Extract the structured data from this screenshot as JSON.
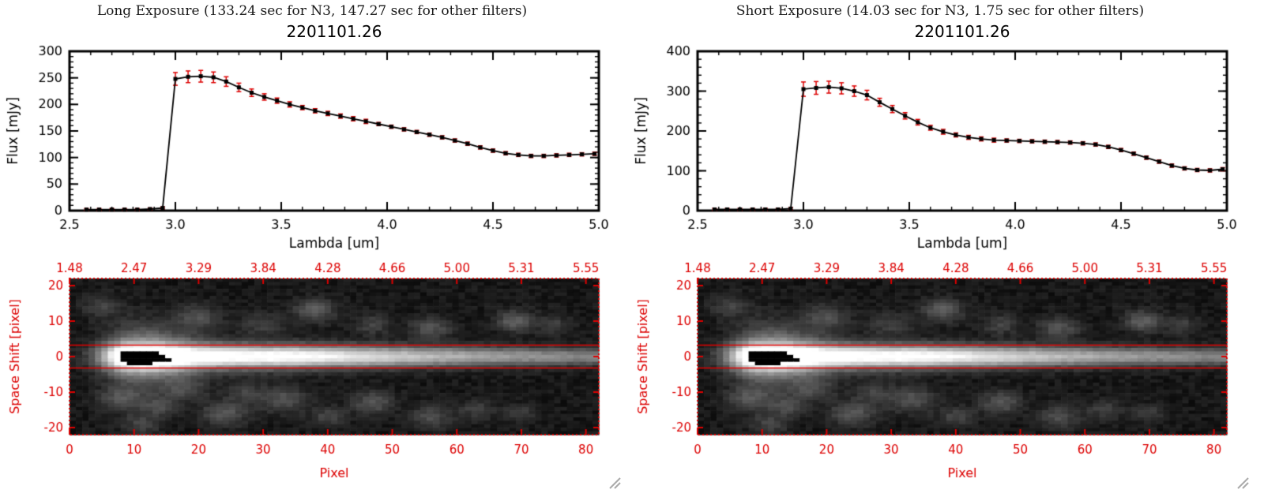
{
  "colors": {
    "accent_red": "#dd0000",
    "frame_black": "#000000",
    "grip_gray": "#aaaaaa"
  },
  "chart_data": {
    "panels": [
      {
        "type": "line",
        "header": "Long Exposure (133.24 sec for N3, 147.27 sec for other filters)",
        "title": "2201101.26",
        "xlabel": "Lambda [um]",
        "ylabel": "Flux [mJy]",
        "xlim": [
          2.5,
          5.0
        ],
        "ylim": [
          0,
          300
        ],
        "xticks": [
          "2.5",
          "3.0",
          "3.5",
          "4.0",
          "4.5",
          "5.0"
        ],
        "yticks": [
          0,
          50,
          100,
          150,
          200,
          250,
          300
        ],
        "x": [
          2.58,
          2.64,
          2.7,
          2.76,
          2.82,
          2.88,
          2.94,
          3.0,
          3.06,
          3.12,
          3.18,
          3.24,
          3.3,
          3.36,
          3.42,
          3.48,
          3.54,
          3.6,
          3.66,
          3.72,
          3.78,
          3.84,
          3.9,
          3.96,
          4.02,
          4.08,
          4.14,
          4.2,
          4.26,
          4.32,
          4.38,
          4.44,
          4.5,
          4.56,
          4.62,
          4.68,
          4.74,
          4.8,
          4.86,
          4.92,
          4.98
        ],
        "y": [
          2,
          2,
          2,
          2,
          2,
          3,
          5,
          248,
          252,
          253,
          251,
          243,
          232,
          222,
          214,
          207,
          200,
          194,
          188,
          183,
          178,
          173,
          168,
          163,
          158,
          153,
          148,
          143,
          138,
          132,
          126,
          119,
          113,
          108,
          105,
          103,
          103,
          104,
          105,
          106,
          107
        ],
        "yerr": [
          2,
          2,
          2,
          2,
          2,
          2,
          2,
          12,
          11,
          11,
          10,
          9,
          8,
          7,
          6,
          5,
          5,
          4,
          4,
          4,
          4,
          4,
          4,
          3,
          3,
          3,
          3,
          3,
          3,
          3,
          3,
          3,
          3,
          3,
          3,
          3,
          3,
          3,
          3,
          3,
          3
        ]
      },
      {
        "type": "line",
        "header": "Short Exposure (14.03 sec for N3, 1.75 sec for other filters)",
        "title": "2201101.26",
        "xlabel": "Lambda [um]",
        "ylabel": "Flux [mJy]",
        "xlim": [
          2.5,
          5.0
        ],
        "ylim": [
          0,
          400
        ],
        "xticks": [
          "2.5",
          "3.0",
          "3.5",
          "4.0",
          "4.5",
          "5.0"
        ],
        "yticks": [
          0,
          100,
          200,
          300,
          400
        ],
        "x": [
          2.58,
          2.64,
          2.7,
          2.76,
          2.82,
          2.88,
          2.94,
          3.0,
          3.06,
          3.12,
          3.18,
          3.24,
          3.3,
          3.36,
          3.42,
          3.48,
          3.54,
          3.6,
          3.66,
          3.72,
          3.78,
          3.84,
          3.9,
          3.96,
          4.02,
          4.08,
          4.14,
          4.2,
          4.26,
          4.32,
          4.38,
          4.44,
          4.5,
          4.56,
          4.62,
          4.68,
          4.74,
          4.8,
          4.86,
          4.92,
          4.98
        ],
        "y": [
          3,
          3,
          3,
          3,
          3,
          3,
          5,
          305,
          308,
          310,
          307,
          300,
          290,
          272,
          255,
          238,
          222,
          208,
          198,
          190,
          184,
          180,
          177,
          176,
          175,
          174,
          173,
          172,
          171,
          169,
          166,
          160,
          152,
          143,
          133,
          123,
          113,
          106,
          102,
          101,
          104
        ],
        "yerr": [
          3,
          3,
          3,
          3,
          3,
          3,
          3,
          18,
          16,
          15,
          14,
          13,
          12,
          10,
          9,
          8,
          7,
          6,
          6,
          5,
          5,
          5,
          5,
          4,
          4,
          4,
          4,
          4,
          4,
          4,
          4,
          4,
          4,
          4,
          4,
          4,
          4,
          4,
          4,
          4,
          4
        ]
      }
    ],
    "spatial_image": {
      "type": "heatmap",
      "top_tick_labels": [
        "1.48",
        "2.47",
        "3.29",
        "3.84",
        "4.28",
        "4.66",
        "5.00",
        "5.31",
        "5.55"
      ],
      "xlabel": "Pixel",
      "ylabel": "Space Shift [pixel]",
      "xticks": [
        0,
        10,
        20,
        30,
        40,
        50,
        60,
        70,
        80
      ],
      "yticks": [
        -20,
        -10,
        0,
        10,
        20
      ],
      "xrange": [
        0,
        82
      ],
      "yrange": [
        -22,
        22
      ],
      "nx": 83,
      "ny": 45,
      "aperture_y": [
        3.2,
        -3.2
      ],
      "background": 0.05,
      "noise": 0.07,
      "seed": 20110126,
      "streak": {
        "peak_x": 12,
        "amp_base": 0.35,
        "amp_peak": 0.85,
        "x_scale": 30,
        "sigma0": 2.6,
        "sigma_slope": -0.012,
        "onset_x": 6,
        "onset_width": 1.6,
        "halo": [
          11,
          0,
          0.5,
          5.5
        ]
      },
      "glow_blobs": [
        [
          5,
          14,
          0.14,
          2.2
        ],
        [
          20,
          11,
          0.18,
          2.4
        ],
        [
          30,
          9,
          0.13,
          2.4
        ],
        [
          38,
          13,
          0.24,
          2.2
        ],
        [
          47,
          9,
          0.15,
          2.0
        ],
        [
          56,
          8,
          0.2,
          2.2
        ],
        [
          69,
          10,
          0.26,
          2.0
        ],
        [
          75,
          9,
          0.13,
          1.8
        ],
        [
          8,
          -12,
          0.2,
          2.4
        ],
        [
          14,
          -14,
          0.17,
          2.0
        ],
        [
          24,
          -16,
          0.22,
          2.4
        ],
        [
          33,
          -12,
          0.2,
          2.6
        ],
        [
          40,
          -17,
          0.15,
          2.0
        ],
        [
          47,
          -13,
          0.22,
          2.2
        ],
        [
          56,
          -17,
          0.18,
          2.2
        ],
        [
          63,
          -15,
          0.13,
          2.0
        ],
        [
          11,
          -19,
          0.15,
          2.0
        ],
        [
          70,
          -16,
          0.12,
          1.8
        ],
        [
          18,
          -9,
          0.15,
          2.2
        ],
        [
          27,
          -10,
          0.13,
          2.0
        ]
      ],
      "mask": {
        "ellipse": [
          11,
          -0.3,
          3.4,
          2.1
        ],
        "tail": [
          13,
          16.2,
          -1.5,
          -0.4
        ]
      }
    }
  }
}
